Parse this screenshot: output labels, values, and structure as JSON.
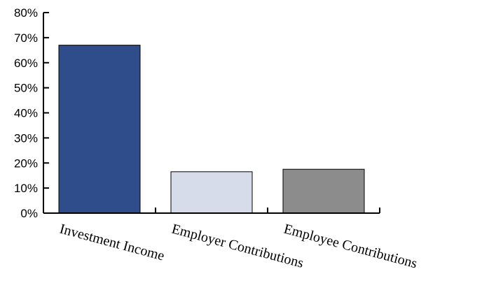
{
  "chart_data": {
    "type": "bar",
    "categories": [
      "Investment Income",
      "Employer Contributions",
      "Employee Contributions"
    ],
    "values": [
      67,
      16.5,
      17.5
    ],
    "value_unit": "%",
    "ylim": [
      0,
      80
    ],
    "y_ticks": [
      "0%",
      "10%",
      "20%",
      "30%",
      "40%",
      "50%",
      "60%",
      "70%",
      "80%"
    ],
    "bar_colors": [
      "#2f4d8a",
      "#d6dce9",
      "#8c8c8c"
    ],
    "title": "",
    "xlabel": "",
    "ylabel": "",
    "grid": false,
    "legend": "none"
  }
}
